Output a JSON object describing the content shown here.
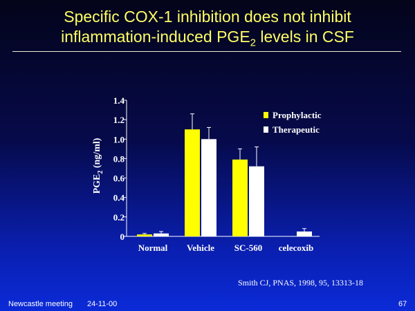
{
  "title": {
    "line1": "Specific COX-1 inhibition does not inhibit",
    "line2_pre": "inflammation-induced PGE",
    "line2_sub": "2",
    "line2_post": " levels in CSF"
  },
  "colors": {
    "prophylactic": "#ffff00",
    "therapeutic": "#ffffff",
    "axis": "#ffffff",
    "title": "#ffff66"
  },
  "chart_data": {
    "type": "bar",
    "categories": [
      "Normal",
      "Vehicle",
      "SC-560",
      "celecoxib"
    ],
    "series": [
      {
        "name": "Prophylactic",
        "values": [
          0.02,
          1.1,
          0.79,
          0.0
        ],
        "error": [
          0.01,
          0.16,
          0.11,
          0.0
        ]
      },
      {
        "name": "Therapeutic",
        "values": [
          0.03,
          1.0,
          0.72,
          0.05
        ],
        "error": [
          0.02,
          0.12,
          0.2,
          0.03
        ]
      }
    ],
    "ylabel_pre": "PGE",
    "ylabel_sub": "2",
    "ylabel_post": " (ng/ml)",
    "ylim": [
      0,
      1.4
    ],
    "yticks": [
      "0",
      "0.2",
      "0.4",
      "0.6",
      "0.8",
      "1.0",
      "1.2",
      "1.4"
    ],
    "legend_position": "top-right",
    "grid": false
  },
  "citation": "Smith CJ, PNAS, 1998, 95, 13313-18",
  "footer": {
    "left": "Newcastle meeting",
    "date": "24-11-00",
    "page": "67"
  }
}
